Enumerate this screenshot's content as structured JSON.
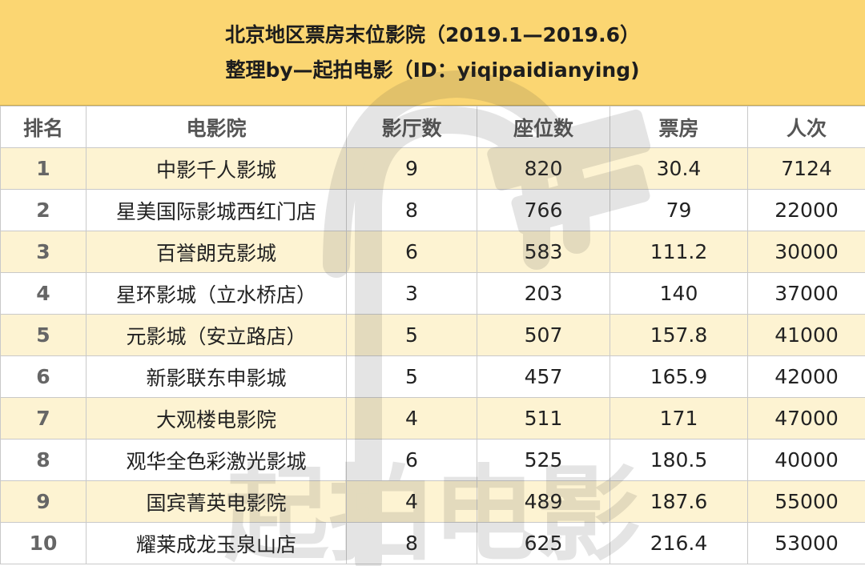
{
  "title": {
    "line1": "北京地区票房末位影院（2019.1—2019.6）",
    "line2": "整理by—起拍电影（ID：yiqipaidianying)"
  },
  "watermark_text": "起拍电影",
  "table": {
    "headers": [
      "排名",
      "电影院",
      "影厅数",
      "座位数",
      "票房",
      "人次"
    ],
    "rows": [
      [
        "1",
        "中影千人影城",
        "9",
        "820",
        "30.4",
        "7124"
      ],
      [
        "2",
        "星美国际影城西红门店",
        "8",
        "766",
        "79",
        "22000"
      ],
      [
        "3",
        "百誉朗克影城",
        "6",
        "583",
        "111.2",
        "30000"
      ],
      [
        "4",
        "星环影城（立水桥店）",
        "3",
        "203",
        "140",
        "37000"
      ],
      [
        "5",
        "元影城（安立路店）",
        "5",
        "507",
        "157.8",
        "41000"
      ],
      [
        "6",
        "新影联东申影城",
        "5",
        "457",
        "165.9",
        "42000"
      ],
      [
        "7",
        "大观楼电影院",
        "4",
        "511",
        "171",
        "47000"
      ],
      [
        "8",
        "观华全色彩激光影城",
        "6",
        "525",
        "180.5",
        "40000"
      ],
      [
        "9",
        "国宾菁英电影院",
        "4",
        "489",
        "187.6",
        "55000"
      ],
      [
        "10",
        "耀莱成龙玉泉山店",
        "8",
        "625",
        "216.4",
        "53000"
      ]
    ]
  },
  "colors": {
    "title_band": "#fbd672",
    "odd_row": "#fdf3d2",
    "even_row": "#ffffff",
    "border": "#c9c9c9"
  }
}
